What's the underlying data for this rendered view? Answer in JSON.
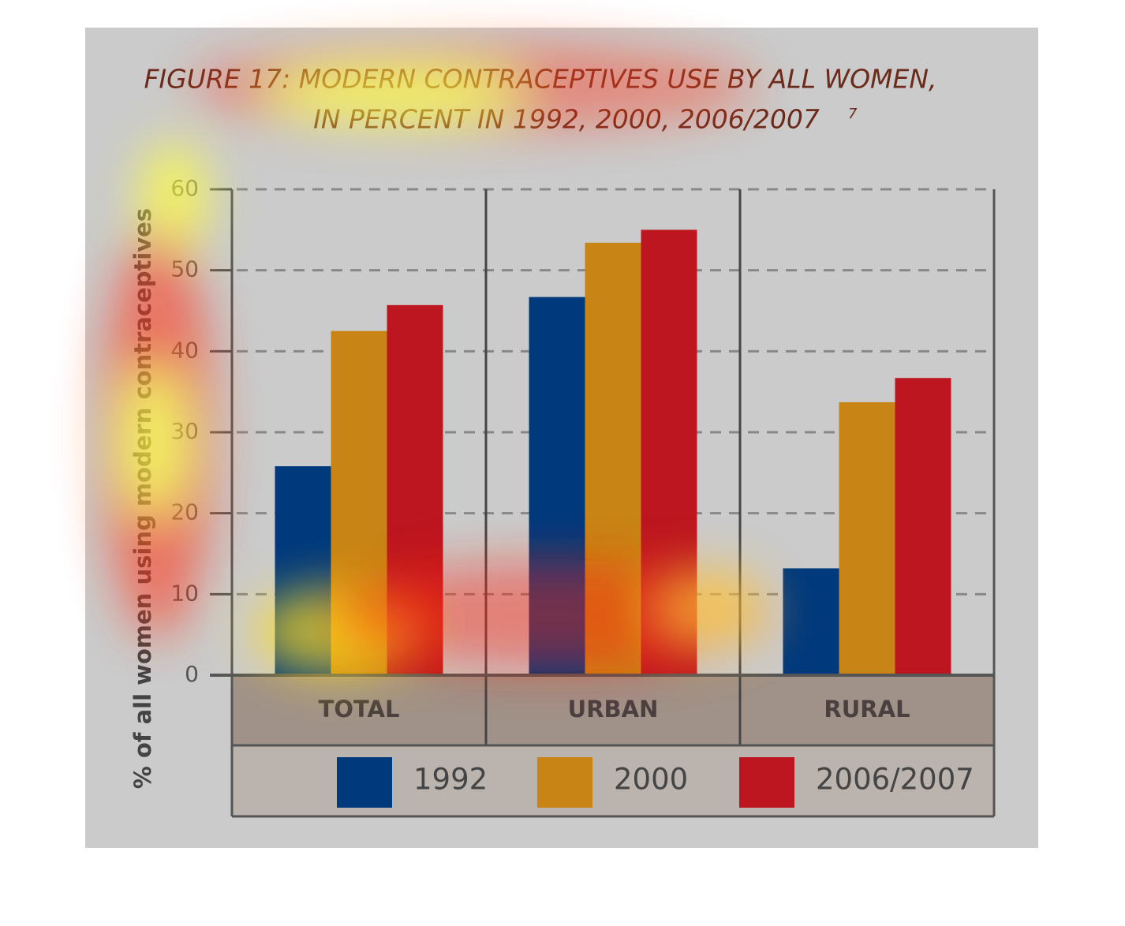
{
  "chart_data": {
    "type": "bar",
    "title_lines": [
      "FIGURE 17: MODERN CONTRACEPTIVES USE BY ALL WOMEN,",
      "IN PERCENT IN 1992, 2000, 2006/2007"
    ],
    "title_note": "7",
    "y_label": "% of all women using modern contraceptives",
    "categories": [
      "TOTAL",
      "URBAN",
      "RURAL"
    ],
    "series": [
      {
        "name": "1992",
        "color": "#003a7d",
        "values": [
          25.8,
          46.7,
          13.2
        ]
      },
      {
        "name": "2000",
        "color": "#c88515",
        "values": [
          42.5,
          53.4,
          33.7
        ]
      },
      {
        "name": "2006/2007",
        "color": "#bd1620",
        "values": [
          45.7,
          55.0,
          36.7
        ]
      }
    ],
    "ylim": [
      0,
      60
    ],
    "yticks": [
      0,
      10,
      20,
      30,
      40,
      50,
      60
    ],
    "grid": true
  }
}
